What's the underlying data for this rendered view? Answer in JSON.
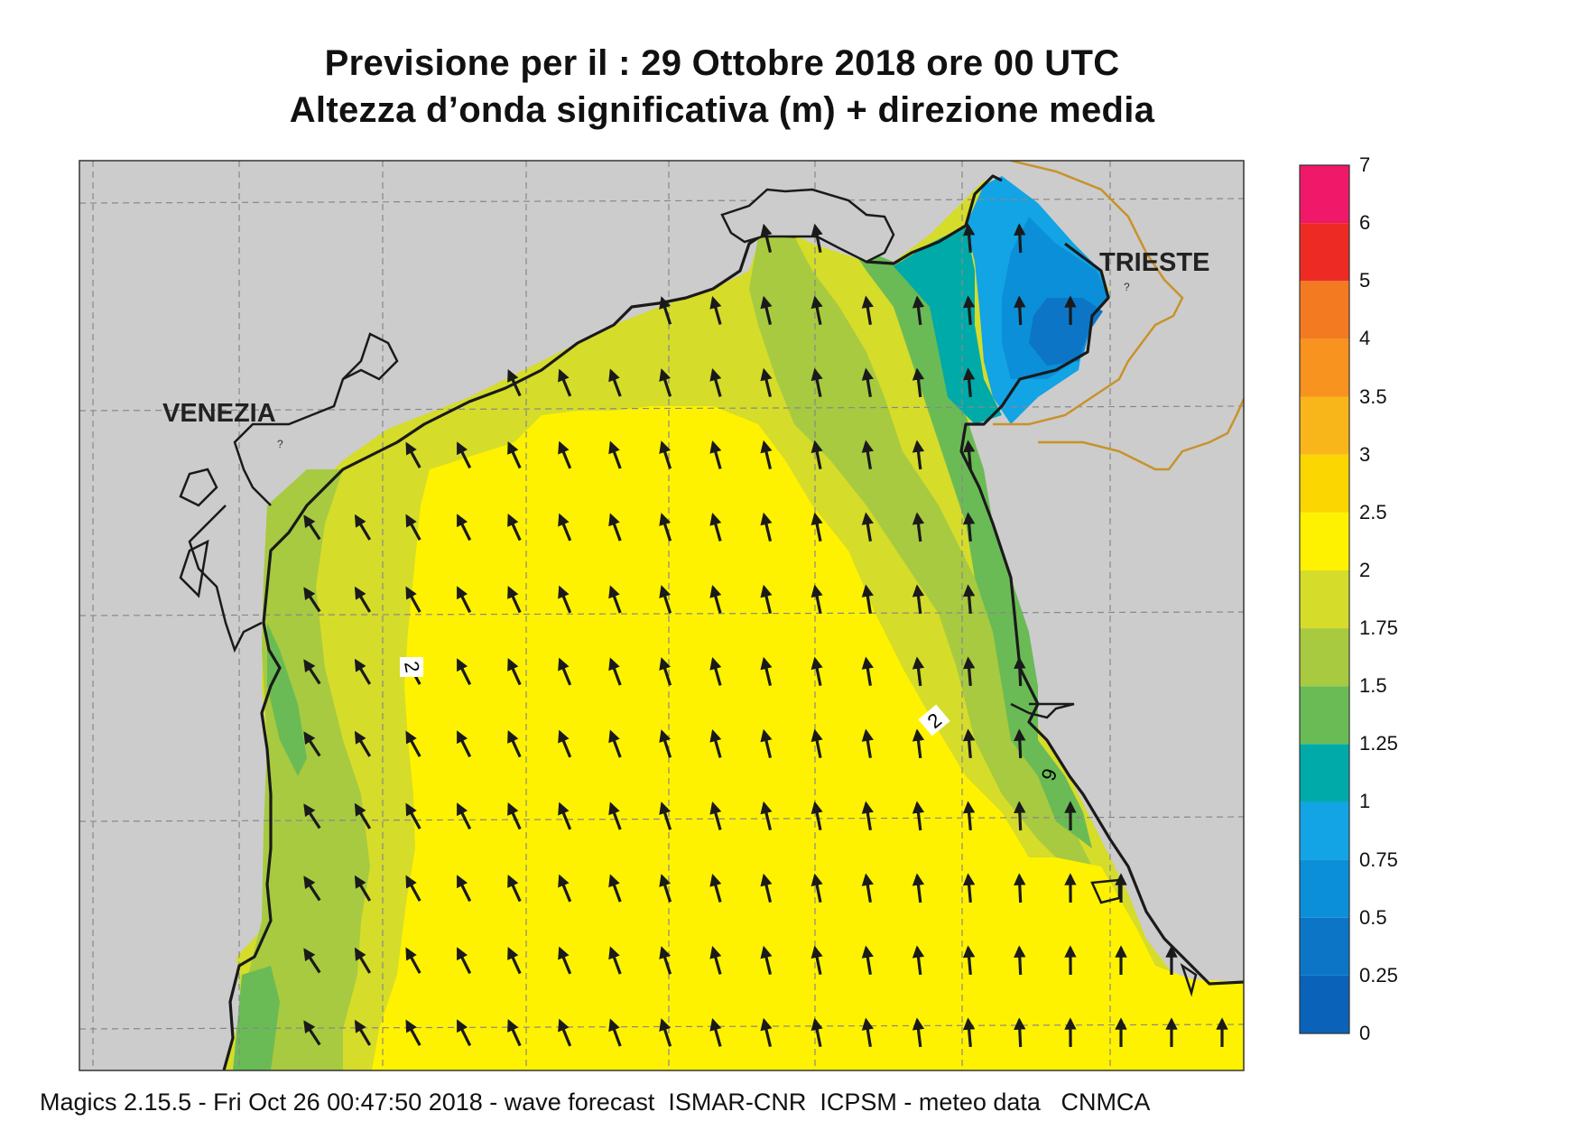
{
  "title": {
    "line1": "Previsione per il  :  29  Ottobre  2018   ore 00 UTC",
    "line2": "Altezza d’onda significativa (m) + direzione media"
  },
  "places": {
    "venezia": "VENEZIA",
    "trieste": "TRIESTE"
  },
  "contour_labels": [
    "2",
    "2",
    "9"
  ],
  "colorbar": {
    "levels": [
      "0",
      "0.25",
      "0.5",
      "0.75",
      "1",
      "1.25",
      "1.5",
      "1.75",
      "2",
      "2.5",
      "3",
      "3.5",
      "4",
      "5",
      "6",
      "7"
    ],
    "colors": [
      "#0a63b8",
      "#0c75c6",
      "#0a8fd8",
      "#12a4e4",
      "#00aaa8",
      "#6abb55",
      "#a7ca40",
      "#d5dc2a",
      "#fff200",
      "#fcd600",
      "#f9b61a",
      "#f7931e",
      "#f47a22",
      "#ee2a24",
      "#ef1869"
    ]
  },
  "map_colors": {
    "land": "#cccccc",
    "coast": "#1a1a1a",
    "border": "#c8922a",
    "arrow": "#1a1a1a"
  },
  "footer": "Magics 2.15.5 - Fri Oct 26 00:47:50 2018 - wave forecast  ISMAR-CNR  ICPSM - meteo data   CNMCA"
}
